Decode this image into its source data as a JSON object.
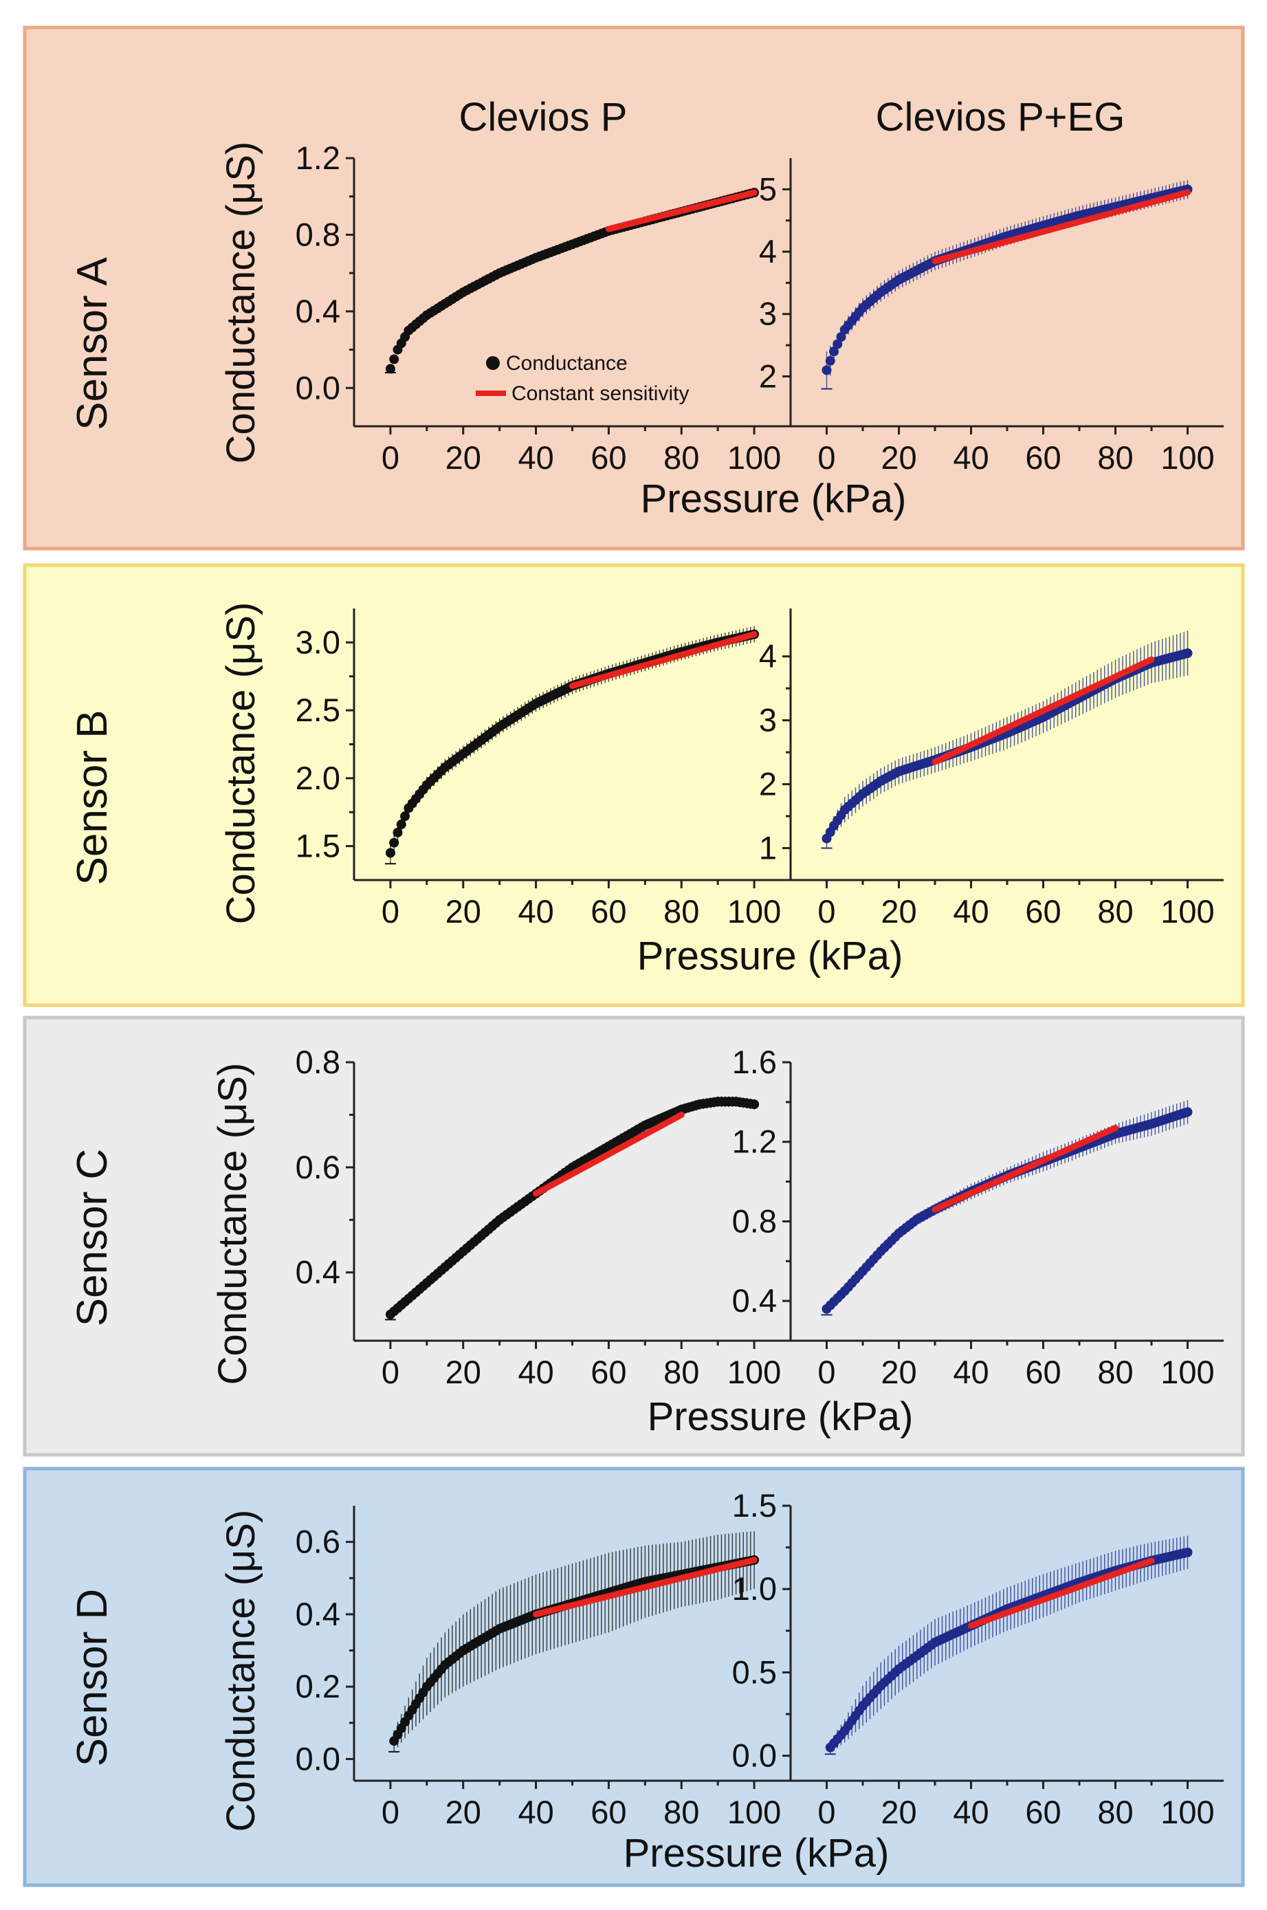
{
  "figure": {
    "column_titles": [
      "Clevios P",
      "Clevios P+EG"
    ],
    "ylabel": "Conductance (μS)",
    "xlabel": "Pressure (kPa)",
    "legend": [
      {
        "label": "Conductance",
        "color": "#111111",
        "marker": "circle"
      },
      {
        "label": "Constant sensitivity",
        "color": "#e8231f",
        "marker": "line"
      }
    ],
    "colors": {
      "clevios_p": "#111111",
      "clevios_p_eg": "#1f2a8a",
      "fit": "#e8231f",
      "axis": "#222222"
    }
  },
  "chart_data": [
    {
      "type": "line",
      "row_title": "Sensor A",
      "panel_title": "Clevios P",
      "background": "#f7d5c3",
      "border": "#eaa987",
      "series_color": "#111111",
      "error_bars": true,
      "xlim": [
        -10,
        110
      ],
      "ylim": [
        -0.2,
        1.2
      ],
      "xticks": [
        0,
        20,
        40,
        60,
        80,
        100
      ],
      "yticks": [
        0.0,
        0.4,
        0.8,
        1.2
      ],
      "ytick_labels": [
        "0.0",
        "0.4",
        "0.8",
        "1.2"
      ],
      "x": [
        0,
        2,
        5,
        10,
        15,
        20,
        30,
        40,
        50,
        60,
        70,
        80,
        90,
        100
      ],
      "y": [
        0.1,
        0.2,
        0.3,
        0.38,
        0.44,
        0.5,
        0.6,
        0.68,
        0.75,
        0.82,
        0.87,
        0.92,
        0.97,
        1.02
      ],
      "err": [
        0.02,
        0.02,
        0.02,
        0.02,
        0.02,
        0.02,
        0.02,
        0.02,
        0.02,
        0.02,
        0.02,
        0.02,
        0.02,
        0.02
      ],
      "fit": {
        "x": [
          60,
          100
        ],
        "y": [
          0.83,
          1.02
        ]
      }
    },
    {
      "type": "line",
      "row_title": "Sensor A",
      "panel_title": "Clevios P+EG",
      "background": "#f7d5c3",
      "border": "#eaa987",
      "series_color": "#1f2a8a",
      "error_bars": true,
      "xlim": [
        -10,
        110
      ],
      "ylim": [
        1.2,
        5.5
      ],
      "xticks": [
        0,
        20,
        40,
        60,
        80,
        100
      ],
      "yticks": [
        2,
        3,
        4,
        5
      ],
      "ytick_labels": [
        "2",
        "3",
        "4",
        "5"
      ],
      "x": [
        0,
        2,
        5,
        10,
        15,
        20,
        30,
        40,
        50,
        60,
        70,
        80,
        90,
        100
      ],
      "y": [
        2.1,
        2.4,
        2.75,
        3.1,
        3.35,
        3.55,
        3.85,
        4.05,
        4.25,
        4.42,
        4.58,
        4.72,
        4.86,
        5.0
      ],
      "err": [
        0.3,
        0.18,
        0.15,
        0.15,
        0.15,
        0.15,
        0.15,
        0.15,
        0.15,
        0.15,
        0.15,
        0.15,
        0.15,
        0.15
      ],
      "fit": {
        "x": [
          30,
          100
        ],
        "y": [
          3.85,
          4.95
        ]
      }
    },
    {
      "type": "line",
      "row_title": "Sensor B",
      "panel_title": "Clevios P",
      "background": "#fdfcc9",
      "border": "#f2d774",
      "series_color": "#111111",
      "error_bars": true,
      "xlim": [
        -10,
        110
      ],
      "ylim": [
        1.25,
        3.25
      ],
      "xticks": [
        0,
        20,
        40,
        60,
        80,
        100
      ],
      "yticks": [
        1.5,
        2.0,
        2.5,
        3.0
      ],
      "ytick_labels": [
        "1.5",
        "2.0",
        "2.5",
        "3.0"
      ],
      "x": [
        0,
        2,
        5,
        10,
        15,
        20,
        30,
        40,
        50,
        60,
        70,
        80,
        90,
        100
      ],
      "y": [
        1.45,
        1.6,
        1.78,
        1.95,
        2.08,
        2.18,
        2.38,
        2.55,
        2.68,
        2.77,
        2.85,
        2.93,
        3.0,
        3.06
      ],
      "err": [
        0.08,
        0.07,
        0.06,
        0.06,
        0.06,
        0.06,
        0.06,
        0.06,
        0.06,
        0.06,
        0.06,
        0.06,
        0.06,
        0.06
      ],
      "fit": {
        "x": [
          50,
          100
        ],
        "y": [
          2.68,
          3.06
        ]
      }
    },
    {
      "type": "line",
      "row_title": "Sensor B",
      "panel_title": "Clevios P+EG",
      "background": "#fdfcc9",
      "border": "#f2d774",
      "series_color": "#1f2a8a",
      "error_bars": true,
      "xlim": [
        -10,
        110
      ],
      "ylim": [
        0.5,
        4.75
      ],
      "xticks": [
        0,
        20,
        40,
        60,
        80,
        100
      ],
      "yticks": [
        1,
        2,
        3,
        4
      ],
      "ytick_labels": [
        "1",
        "2",
        "3",
        "4"
      ],
      "x": [
        0,
        2,
        5,
        10,
        15,
        20,
        30,
        40,
        50,
        60,
        70,
        80,
        90,
        100
      ],
      "y": [
        1.15,
        1.35,
        1.6,
        1.85,
        2.05,
        2.2,
        2.38,
        2.58,
        2.8,
        3.05,
        3.35,
        3.65,
        3.9,
        4.05
      ],
      "err": [
        0.15,
        0.15,
        0.2,
        0.2,
        0.2,
        0.2,
        0.2,
        0.22,
        0.25,
        0.25,
        0.28,
        0.3,
        0.32,
        0.35
      ],
      "fit": {
        "x": [
          30,
          90
        ],
        "y": [
          2.35,
          3.95
        ]
      }
    },
    {
      "type": "line",
      "row_title": "Sensor C",
      "panel_title": "Clevios P",
      "background": "#ececec",
      "border": "#c8c8c8",
      "series_color": "#111111",
      "error_bars": true,
      "xlim": [
        -10,
        110
      ],
      "ylim": [
        0.27,
        0.8
      ],
      "xticks": [
        0,
        20,
        40,
        60,
        80,
        100
      ],
      "yticks": [
        0.4,
        0.6,
        0.8
      ],
      "ytick_labels": [
        "0.4",
        "0.6",
        "0.8"
      ],
      "x": [
        0,
        5,
        10,
        20,
        30,
        40,
        50,
        60,
        70,
        80,
        85,
        90,
        95,
        100
      ],
      "y": [
        0.32,
        0.35,
        0.38,
        0.44,
        0.5,
        0.55,
        0.6,
        0.64,
        0.68,
        0.71,
        0.72,
        0.725,
        0.725,
        0.72
      ],
      "err": [
        0.01,
        0.01,
        0.01,
        0.01,
        0.01,
        0.01,
        0.01,
        0.01,
        0.01,
        0.01,
        0.01,
        0.01,
        0.01,
        0.01
      ],
      "fit": {
        "x": [
          40,
          80
        ],
        "y": [
          0.55,
          0.7
        ]
      }
    },
    {
      "type": "line",
      "row_title": "Sensor C",
      "panel_title": "Clevios P+EG",
      "background": "#ececec",
      "border": "#c8c8c8",
      "series_color": "#1f2a8a",
      "error_bars": true,
      "xlim": [
        -10,
        110
      ],
      "ylim": [
        0.2,
        1.6
      ],
      "xticks": [
        0,
        20,
        40,
        60,
        80,
        100
      ],
      "yticks": [
        0.4,
        0.8,
        1.2,
        1.6
      ],
      "ytick_labels": [
        "0.4",
        "0.8",
        "1.2",
        "1.6"
      ],
      "x": [
        0,
        5,
        10,
        15,
        20,
        25,
        30,
        40,
        50,
        60,
        70,
        80,
        90,
        100
      ],
      "y": [
        0.36,
        0.45,
        0.55,
        0.65,
        0.74,
        0.81,
        0.86,
        0.95,
        1.03,
        1.1,
        1.17,
        1.24,
        1.29,
        1.35
      ],
      "err": [
        0.03,
        0.03,
        0.03,
        0.03,
        0.03,
        0.03,
        0.03,
        0.04,
        0.04,
        0.05,
        0.05,
        0.05,
        0.06,
        0.06
      ],
      "fit": {
        "x": [
          30,
          80
        ],
        "y": [
          0.86,
          1.27
        ]
      }
    },
    {
      "type": "line",
      "row_title": "Sensor D",
      "panel_title": "Clevios P",
      "background": "#c8dcee",
      "border": "#8fb5db",
      "series_color": "#111111",
      "error_bars": true,
      "xlim": [
        -10,
        110
      ],
      "ylim": [
        -0.06,
        0.7
      ],
      "xticks": [
        0,
        20,
        40,
        60,
        80,
        100
      ],
      "yticks": [
        0.0,
        0.2,
        0.4,
        0.6
      ],
      "ytick_labels": [
        "0.0",
        "0.2",
        "0.4",
        "0.6"
      ],
      "x": [
        1,
        5,
        10,
        15,
        20,
        30,
        40,
        50,
        60,
        70,
        80,
        90,
        100
      ],
      "y": [
        0.05,
        0.12,
        0.2,
        0.26,
        0.3,
        0.36,
        0.4,
        0.43,
        0.46,
        0.49,
        0.51,
        0.53,
        0.55
      ],
      "err": [
        0.03,
        0.05,
        0.08,
        0.09,
        0.1,
        0.11,
        0.11,
        0.11,
        0.11,
        0.1,
        0.09,
        0.09,
        0.08
      ],
      "fit": {
        "x": [
          40,
          100
        ],
        "y": [
          0.4,
          0.55
        ]
      }
    },
    {
      "type": "line",
      "row_title": "Sensor D",
      "panel_title": "Clevios P+EG",
      "background": "#c8dcee",
      "border": "#8fb5db",
      "series_color": "#1f2a8a",
      "error_bars": true,
      "xlim": [
        -10,
        110
      ],
      "ylim": [
        -0.15,
        1.5
      ],
      "xticks": [
        0,
        20,
        40,
        60,
        80,
        100
      ],
      "yticks": [
        0.0,
        0.5,
        1.0,
        1.5
      ],
      "ytick_labels": [
        "0.0",
        "0.5",
        "1.0",
        "1.5"
      ],
      "x": [
        1,
        5,
        10,
        15,
        20,
        30,
        40,
        50,
        60,
        70,
        80,
        90,
        100
      ],
      "y": [
        0.05,
        0.15,
        0.3,
        0.42,
        0.52,
        0.68,
        0.78,
        0.88,
        0.96,
        1.04,
        1.11,
        1.17,
        1.22
      ],
      "err": [
        0.04,
        0.07,
        0.12,
        0.14,
        0.14,
        0.14,
        0.13,
        0.13,
        0.13,
        0.12,
        0.12,
        0.11,
        0.1
      ],
      "fit": {
        "x": [
          40,
          90
        ],
        "y": [
          0.78,
          1.17
        ]
      }
    }
  ]
}
